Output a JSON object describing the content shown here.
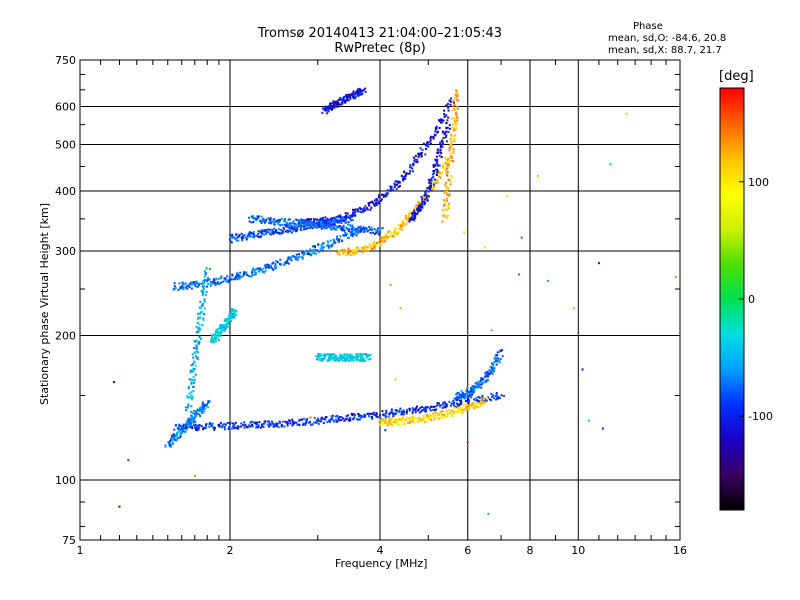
{
  "chart_data": {
    "type": "scatter",
    "title": "Tromsø 20140413 21:04:00–21:05:43",
    "subtitle": "RwPretec (8p)",
    "xlabel": "Frequency [MHz]",
    "ylabel": "Stationary phase Virtual Height [km]",
    "x_scale": "log",
    "y_scale": "log",
    "xlim": [
      1,
      16
    ],
    "ylim": [
      75,
      750
    ],
    "x_ticks": [
      "1",
      "2",
      "4",
      "6",
      "8",
      "10",
      "16"
    ],
    "y_ticks": [
      "75",
      "100",
      "200",
      "300",
      "400",
      "500",
      "600",
      "750"
    ],
    "x_grid": [
      2,
      4,
      6,
      8,
      10
    ],
    "y_grid": [
      100,
      200,
      300,
      400,
      500,
      600
    ],
    "grid": true,
    "stats": {
      "heading": "Phase",
      "o_line": "mean, sd,O: -84.6, 20.8",
      "x_line": "mean, sd,X:  88.7, 21.7"
    },
    "colorbar": {
      "label": "[deg]",
      "range": [
        -180,
        180
      ],
      "ticks": [
        "100",
        "0",
        "-100"
      ],
      "tick_values": [
        100,
        0,
        -100
      ],
      "colormap": [
        "#000000",
        "#3a0060",
        "#1a00c8",
        "#0030ff",
        "#00a0ff",
        "#00e0e0",
        "#00e050",
        "#50e000",
        "#d0f000",
        "#ffff00",
        "#ffc000",
        "#ff6000",
        "#ff0000"
      ]
    },
    "series": [
      {
        "traces": [
          {
            "f": [
              1.55,
              7.0
            ],
            "h": [
              129,
              150
            ],
            "curve": 2.0,
            "phase": -95
          },
          {
            "f": [
              1.55,
              3.7
            ],
            "h": [
              253,
              335
            ],
            "curve": 1.6,
            "phase": -75
          },
          {
            "f": [
              3.3,
              5.5
            ],
            "h": [
              298,
              470
            ],
            "curve": 2.2,
            "phase": 120
          },
          {
            "f": [
              2.8,
              5.6
            ],
            "h": [
              345,
              620
            ],
            "curve": 2.5,
            "phase": -110
          },
          {
            "f": [
              2.0,
              3.5
            ],
            "h": [
              318,
              350
            ],
            "curve": 1.0,
            "phase": -85
          },
          {
            "f": [
              2.2,
              4.0
            ],
            "h": [
              350,
              330
            ],
            "curve": 1.0,
            "phase": -80
          },
          {
            "f": [
              3.1,
              3.7
            ],
            "h": [
              590,
              650
            ],
            "curve": 1.0,
            "phase": -110
          },
          {
            "f": [
              5.4,
              5.7
            ],
            "h": [
              350,
              640
            ],
            "curve": 1.0,
            "phase": 125
          },
          {
            "f": [
              4.6,
              5.5
            ],
            "h": [
              350,
              560
            ],
            "curve": 1.6,
            "phase": -110
          },
          {
            "f": [
              4.0,
              6.5
            ],
            "h": [
              132,
              146
            ],
            "curve": 2.0,
            "phase": 110
          },
          {
            "f": [
              5.7,
              7.0
            ],
            "h": [
              150,
              185
            ],
            "curve": 2.0,
            "phase": -80
          },
          {
            "f": [
              3.0,
              3.8
            ],
            "h": [
              180,
              180
            ],
            "curve": 1.0,
            "phase": -40
          },
          {
            "f": [
              1.65,
              1.8
            ],
            "h": [
              140,
              275
            ],
            "curve": 1.0,
            "phase": -50
          },
          {
            "f": [
              1.85,
              2.05
            ],
            "h": [
              195,
              225
            ],
            "curve": 1.0,
            "phase": -40
          },
          {
            "f": [
              1.5,
              1.8
            ],
            "h": [
              118,
              145
            ],
            "curve": 1.0,
            "phase": -70
          }
        ]
      }
    ],
    "scatter_points": [
      {
        "x": 1.2,
        "y": 88,
        "phase": -110
      },
      {
        "x": 1.25,
        "y": 110,
        "phase": -80
      },
      {
        "x": 1.17,
        "y": 160,
        "phase": -100
      },
      {
        "x": 1.7,
        "y": 102,
        "phase": 150
      },
      {
        "x": 4.3,
        "y": 162,
        "phase": 120
      },
      {
        "x": 5.9,
        "y": 328,
        "phase": 115
      },
      {
        "x": 6.6,
        "y": 85,
        "phase": -60
      },
      {
        "x": 7.6,
        "y": 268,
        "phase": -70
      },
      {
        "x": 8.7,
        "y": 260,
        "phase": -60
      },
      {
        "x": 9.8,
        "y": 228,
        "phase": 130
      },
      {
        "x": 10.5,
        "y": 133,
        "phase": -40
      },
      {
        "x": 10.2,
        "y": 170,
        "phase": -100
      },
      {
        "x": 11.0,
        "y": 283,
        "phase": -110
      },
      {
        "x": 11.2,
        "y": 128,
        "phase": -100
      },
      {
        "x": 12.5,
        "y": 580,
        "phase": 120
      },
      {
        "x": 15.7,
        "y": 265,
        "phase": 140
      },
      {
        "x": 11.6,
        "y": 455,
        "phase": -40
      },
      {
        "x": 7.2,
        "y": 390,
        "phase": 110
      },
      {
        "x": 8.3,
        "y": 430,
        "phase": 120
      },
      {
        "x": 6.0,
        "y": 120,
        "phase": 170
      },
      {
        "x": 6.7,
        "y": 205,
        "phase": 140
      },
      {
        "x": 2.9,
        "y": 135,
        "phase": 150
      },
      {
        "x": 4.1,
        "y": 127,
        "phase": -100
      },
      {
        "x": 7.7,
        "y": 320,
        "phase": 170
      },
      {
        "x": 6.5,
        "y": 305,
        "phase": 110
      },
      {
        "x": 4.2,
        "y": 255,
        "phase": 140
      },
      {
        "x": 4.4,
        "y": 228,
        "phase": 130
      }
    ]
  }
}
